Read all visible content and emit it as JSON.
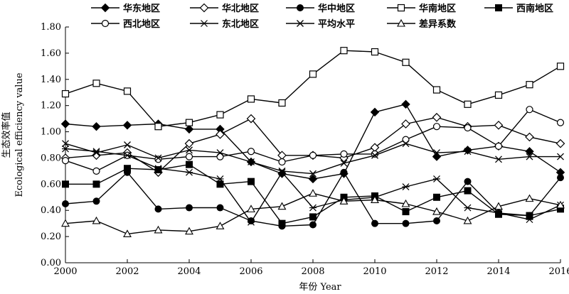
{
  "chart_data": {
    "type": "line",
    "xlabel": "年份 Year",
    "ylabel_cn": "生态效率值",
    "ylabel_en": "Ecological efficiency value",
    "xlim": [
      2000,
      2016
    ],
    "ylim": [
      0.0,
      1.8
    ],
    "x_ticks": [
      "2000",
      "2002",
      "2004",
      "2006",
      "2008",
      "2010",
      "2012",
      "2014",
      "2016"
    ],
    "y_ticks": [
      "0.00",
      "0.20",
      "0.40",
      "0.60",
      "0.80",
      "1.00",
      "1.20",
      "1.40",
      "1.60",
      "1.80"
    ],
    "grid": false,
    "legend_position": "top",
    "x": [
      2000,
      2001,
      2002,
      2003,
      2004,
      2005,
      2006,
      2007,
      2008,
      2009,
      2010,
      2011,
      2012,
      2013,
      2014,
      2015,
      2016
    ],
    "series": [
      {
        "name": "华东地区",
        "marker": "diamond-filled",
        "values": [
          1.06,
          1.04,
          1.05,
          1.06,
          1.02,
          1.02,
          0.77,
          0.68,
          0.64,
          0.68,
          1.15,
          1.21,
          0.81,
          0.86,
          0.89,
          0.85,
          0.69
        ]
      },
      {
        "name": "华北地区",
        "marker": "diamond-open",
        "values": [
          0.8,
          0.82,
          0.84,
          0.69,
          0.91,
          0.98,
          1.1,
          0.82,
          0.82,
          0.8,
          0.88,
          1.06,
          1.11,
          1.04,
          1.05,
          0.96,
          0.91
        ]
      },
      {
        "name": "华中地区",
        "marker": "circle-filled",
        "values": [
          0.45,
          0.47,
          0.69,
          0.41,
          0.42,
          0.42,
          0.32,
          0.28,
          0.29,
          0.69,
          0.3,
          0.3,
          0.32,
          0.62,
          0.38,
          0.36,
          0.65
        ]
      },
      {
        "name": "华南地区",
        "marker": "square-open",
        "values": [
          1.29,
          1.37,
          1.31,
          1.04,
          1.07,
          1.13,
          1.25,
          1.22,
          1.44,
          1.62,
          1.61,
          1.53,
          1.32,
          1.21,
          1.28,
          1.36,
          1.5
        ]
      },
      {
        "name": "西南地区",
        "marker": "square-filled",
        "values": [
          0.6,
          0.6,
          0.72,
          0.71,
          0.75,
          0.6,
          0.62,
          0.3,
          0.35,
          0.5,
          0.51,
          0.39,
          0.5,
          0.55,
          0.37,
          0.36,
          0.41
        ]
      },
      {
        "name": "西北地区",
        "marker": "circle-open",
        "values": [
          0.78,
          0.7,
          0.82,
          0.79,
          0.81,
          0.81,
          0.85,
          0.77,
          0.82,
          0.83,
          0.83,
          0.94,
          1.04,
          1.03,
          0.89,
          1.17,
          1.07
        ]
      },
      {
        "name": "东北地区",
        "marker": "asterisk",
        "values": [
          0.87,
          0.85,
          0.82,
          0.72,
          0.69,
          0.64,
          0.31,
          0.69,
          0.42,
          0.48,
          0.5,
          0.58,
          0.64,
          0.42,
          0.38,
          0.33,
          0.44
        ]
      },
      {
        "name": "平均水平",
        "marker": "cross",
        "values": [
          0.91,
          0.84,
          0.9,
          0.8,
          0.86,
          0.84,
          0.77,
          0.7,
          0.68,
          0.76,
          0.82,
          0.91,
          0.84,
          0.85,
          0.79,
          0.81,
          0.81
        ]
      },
      {
        "name": "差异系数",
        "marker": "triangle-open",
        "values": [
          0.3,
          0.32,
          0.22,
          0.25,
          0.24,
          0.28,
          0.41,
          0.43,
          0.53,
          0.47,
          0.48,
          0.45,
          0.39,
          0.32,
          0.43,
          0.49,
          0.44
        ]
      }
    ]
  }
}
